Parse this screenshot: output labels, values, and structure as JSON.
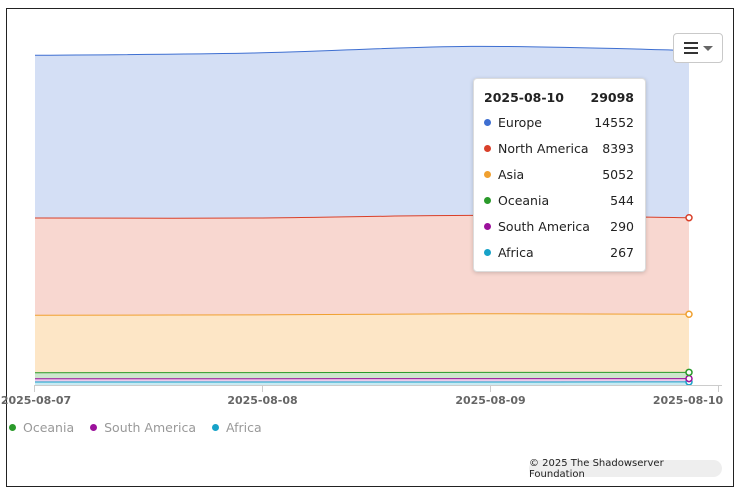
{
  "chart_data": {
    "type": "area",
    "stacked": true,
    "x": [
      "2025-08-07",
      "2025-08-08",
      "2025-08-09",
      "2025-08-10"
    ],
    "series": [
      {
        "name": "Europe",
        "color": "#3e6fd1",
        "fill": "#d4dff5",
        "values": [
          14150,
          14350,
          14700,
          14552
        ]
      },
      {
        "name": "North America",
        "color": "#d9402a",
        "fill": "#f8d7d0",
        "values": [
          8450,
          8420,
          8550,
          8393
        ]
      },
      {
        "name": "Asia",
        "color": "#f0a030",
        "fill": "#fde6c6",
        "values": [
          5000,
          5020,
          5100,
          5052
        ]
      },
      {
        "name": "Oceania",
        "color": "#2a9a2a",
        "fill": "#cde7cd",
        "values": [
          530,
          530,
          540,
          544
        ]
      },
      {
        "name": "South America",
        "color": "#9b119b",
        "fill": "#ebcceb",
        "values": [
          280,
          285,
          290,
          290
        ]
      },
      {
        "name": "Africa",
        "color": "#17a2c8",
        "fill": "#c8eaf3",
        "values": [
          260,
          262,
          265,
          267
        ]
      }
    ],
    "ylim": [
      0,
      30000
    ],
    "grid": false,
    "legend": "bottom-left"
  },
  "tooltip": {
    "date": "2025-08-10",
    "total": "29098",
    "rows": [
      {
        "name": "Europe",
        "value": "14552",
        "color": "#3e6fd1"
      },
      {
        "name": "North America",
        "value": "8393",
        "color": "#d9402a"
      },
      {
        "name": "Asia",
        "value": "5052",
        "color": "#f0a030"
      },
      {
        "name": "Oceania",
        "value": "544",
        "color": "#2a9a2a"
      },
      {
        "name": "South America",
        "value": "290",
        "color": "#9b119b"
      },
      {
        "name": "Africa",
        "value": "267",
        "color": "#17a2c8"
      }
    ]
  },
  "legend": {
    "items": [
      {
        "name": "Oceania",
        "color": "#2a9a2a"
      },
      {
        "name": "South America",
        "color": "#9b119b"
      },
      {
        "name": "Africa",
        "color": "#17a2c8"
      }
    ]
  },
  "menu": {
    "icon": "hamburger-menu-icon",
    "caret": "chevron-down-icon"
  },
  "credits": {
    "text": "© 2025 The Shadowserver Foundation"
  }
}
